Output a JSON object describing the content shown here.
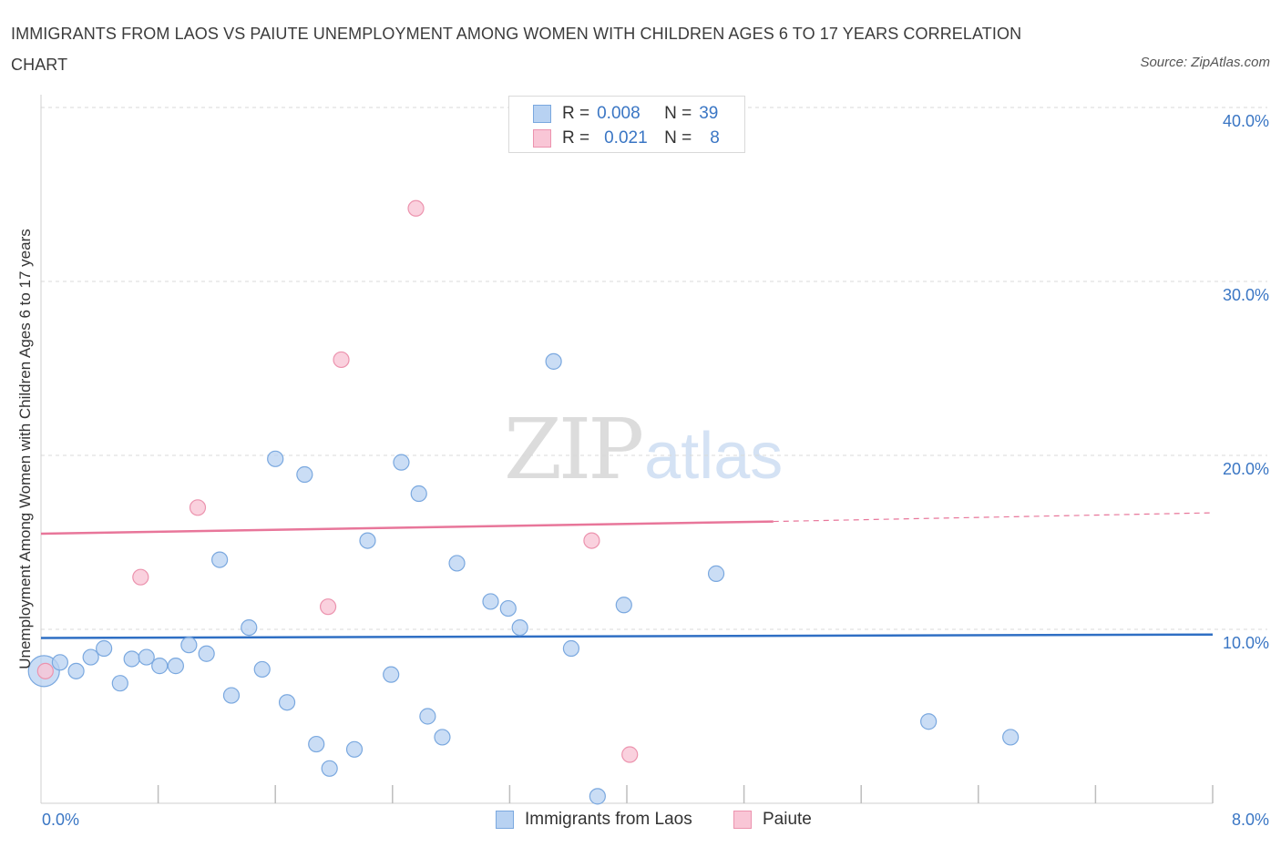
{
  "title": "IMMIGRANTS FROM LAOS VS PAIUTE UNEMPLOYMENT AMONG WOMEN WITH CHILDREN AGES 6 TO 17 YEARS CORRELATION CHART",
  "source": "Source: ZipAtlas.com",
  "watermark": {
    "zip": "ZIP",
    "atlas": "atlas"
  },
  "legend_top": {
    "r_label": "R =",
    "n_label": "N =",
    "rows": [
      {
        "name": "Immigrants from Laos",
        "r": "0.008",
        "n": "39"
      },
      {
        "name": "Paiute",
        "r": "0.021",
        "n": "8"
      }
    ]
  },
  "colors": {
    "laos_fill": "#b8d2f2",
    "laos_stroke": "#7aa8df",
    "laos_line": "#2f6fc4",
    "paiute_fill": "#f9c6d6",
    "paiute_stroke": "#ec93ae",
    "paiute_line": "#e8769a",
    "grid": "#d9d9d9",
    "axis_text": "#3a76c4"
  },
  "chart_data": {
    "type": "scatter",
    "title": "IMMIGRANTS FROM LAOS VS PAIUTE UNEMPLOYMENT AMONG WOMEN WITH CHILDREN AGES 6 TO 17 YEARS CORRELATION CHART",
    "xlabel": "",
    "ylabel": "Unemployment Among Women with Children Ages 6 to 17 years",
    "xlim": [
      0,
      8
    ],
    "ylim": [
      0,
      40
    ],
    "x_tick_labels": [
      "0.0%",
      "8.0%"
    ],
    "y_ticks": [
      10,
      20,
      30,
      40
    ],
    "y_tick_labels": [
      "10.0%",
      "20.0%",
      "30.0%",
      "40.0%"
    ],
    "grid": true,
    "legend_position": "top-center",
    "series": [
      {
        "name": "Immigrants from Laos",
        "r": 0.008,
        "n": 39,
        "trend": {
          "x": [
            0,
            8
          ],
          "y": [
            9.5,
            9.7
          ],
          "extrapolated_from": null
        },
        "points": [
          {
            "x": 0.02,
            "y": 7.6,
            "big": true
          },
          {
            "x": 0.13,
            "y": 8.1
          },
          {
            "x": 0.24,
            "y": 7.6
          },
          {
            "x": 0.34,
            "y": 8.4
          },
          {
            "x": 0.43,
            "y": 8.9
          },
          {
            "x": 0.54,
            "y": 6.9
          },
          {
            "x": 0.62,
            "y": 8.3
          },
          {
            "x": 0.72,
            "y": 8.4
          },
          {
            "x": 0.81,
            "y": 7.9
          },
          {
            "x": 0.92,
            "y": 7.9
          },
          {
            "x": 1.01,
            "y": 9.1
          },
          {
            "x": 1.13,
            "y": 8.6
          },
          {
            "x": 1.22,
            "y": 14.0
          },
          {
            "x": 1.3,
            "y": 6.2
          },
          {
            "x": 1.42,
            "y": 10.1
          },
          {
            "x": 1.51,
            "y": 7.7
          },
          {
            "x": 1.6,
            "y": 19.8
          },
          {
            "x": 1.68,
            "y": 5.8
          },
          {
            "x": 1.8,
            "y": 18.9
          },
          {
            "x": 1.88,
            "y": 3.4
          },
          {
            "x": 1.97,
            "y": 2.0
          },
          {
            "x": 2.14,
            "y": 3.1
          },
          {
            "x": 2.23,
            "y": 15.1
          },
          {
            "x": 2.39,
            "y": 7.4
          },
          {
            "x": 2.46,
            "y": 19.6
          },
          {
            "x": 2.58,
            "y": 17.8
          },
          {
            "x": 2.64,
            "y": 5.0
          },
          {
            "x": 2.74,
            "y": 3.8
          },
          {
            "x": 2.84,
            "y": 13.8
          },
          {
            "x": 3.07,
            "y": 11.6
          },
          {
            "x": 3.19,
            "y": 11.2
          },
          {
            "x": 3.27,
            "y": 10.1
          },
          {
            "x": 3.5,
            "y": 25.4
          },
          {
            "x": 3.62,
            "y": 8.9
          },
          {
            "x": 3.8,
            "y": 0.4
          },
          {
            "x": 3.98,
            "y": 11.4
          },
          {
            "x": 4.61,
            "y": 13.2
          },
          {
            "x": 6.06,
            "y": 4.7
          },
          {
            "x": 6.62,
            "y": 3.8
          }
        ]
      },
      {
        "name": "Paiute",
        "r": 0.021,
        "n": 8,
        "trend": {
          "x": [
            0,
            5.0
          ],
          "y": [
            15.5,
            16.2
          ],
          "dashed_to_x": 8,
          "dashed_to_y": 16.7
        },
        "points": [
          {
            "x": 0.03,
            "y": 7.6
          },
          {
            "x": 0.68,
            "y": 13.0
          },
          {
            "x": 1.07,
            "y": 17.0
          },
          {
            "x": 1.96,
            "y": 11.3
          },
          {
            "x": 2.05,
            "y": 25.5
          },
          {
            "x": 2.56,
            "y": 34.2
          },
          {
            "x": 3.76,
            "y": 15.1
          },
          {
            "x": 4.02,
            "y": 2.8
          }
        ]
      }
    ]
  }
}
